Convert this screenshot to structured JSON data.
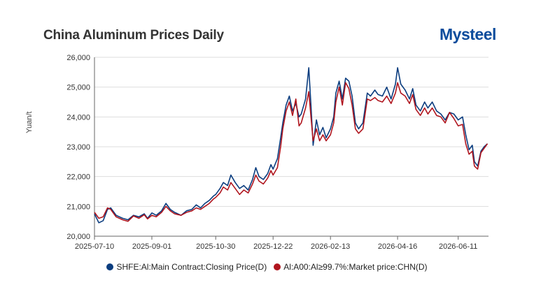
{
  "brand": {
    "logo_text": "Mysteel",
    "logo_color": "#0b4c9c"
  },
  "chart_data": {
    "type": "line",
    "title": "China Aluminum Prices Daily",
    "xlabel": "",
    "ylabel": "Yuan/t",
    "ylim": [
      20000,
      26000
    ],
    "yticks": [
      "20,000",
      "21,000",
      "22,000",
      "23,000",
      "24,000",
      "25,000",
      "26,000"
    ],
    "xticks": [
      "2025-07-10",
      "2025-09-01",
      "2025-10-30",
      "2025-12-22",
      "2026-02-13",
      "2026-04-16",
      "2026-06-11"
    ],
    "grid": "horizontal",
    "legend_position": "bottom",
    "series": [
      {
        "name": "SHFE:Al:Main Contract:Closing Price(D)",
        "color": "#0b3d7f",
        "points": [
          [
            "2025-07-10",
            20750
          ],
          [
            "2025-07-14",
            20450
          ],
          [
            "2025-07-18",
            20520
          ],
          [
            "2025-07-22",
            20900
          ],
          [
            "2025-07-25",
            20950
          ],
          [
            "2025-07-30",
            20700
          ],
          [
            "2025-08-05",
            20600
          ],
          [
            "2025-08-10",
            20550
          ],
          [
            "2025-08-15",
            20700
          ],
          [
            "2025-08-20",
            20650
          ],
          [
            "2025-08-25",
            20750
          ],
          [
            "2025-08-28",
            20600
          ],
          [
            "2025-09-01",
            20780
          ],
          [
            "2025-09-05",
            20700
          ],
          [
            "2025-09-10",
            20850
          ],
          [
            "2025-09-14",
            21100
          ],
          [
            "2025-09-18",
            20900
          ],
          [
            "2025-09-22",
            20800
          ],
          [
            "2025-09-28",
            20700
          ],
          [
            "2025-10-03",
            20850
          ],
          [
            "2025-10-08",
            20900
          ],
          [
            "2025-10-12",
            21050
          ],
          [
            "2025-10-16",
            20950
          ],
          [
            "2025-10-20",
            21100
          ],
          [
            "2025-10-24",
            21200
          ],
          [
            "2025-10-28",
            21350
          ],
          [
            "2025-10-30",
            21400
          ],
          [
            "2025-11-03",
            21600
          ],
          [
            "2025-11-06",
            21800
          ],
          [
            "2025-11-10",
            21700
          ],
          [
            "2025-11-13",
            22050
          ],
          [
            "2025-11-17",
            21800
          ],
          [
            "2025-11-21",
            21600
          ],
          [
            "2025-11-25",
            21700
          ],
          [
            "2025-11-29",
            21550
          ],
          [
            "2025-12-03",
            21900
          ],
          [
            "2025-12-06",
            22300
          ],
          [
            "2025-12-09",
            22000
          ],
          [
            "2025-12-13",
            21900
          ],
          [
            "2025-12-17",
            22100
          ],
          [
            "2025-12-20",
            22400
          ],
          [
            "2025-12-22",
            22250
          ],
          [
            "2025-12-26",
            22600
          ],
          [
            "2025-12-29",
            23300
          ],
          [
            "2025-12-31",
            23800
          ],
          [
            "2026-01-03",
            24400
          ],
          [
            "2026-01-06",
            24700
          ],
          [
            "2026-01-09",
            24200
          ],
          [
            "2026-01-12",
            24450
          ],
          [
            "2026-01-15",
            24000
          ],
          [
            "2026-01-17",
            24100
          ],
          [
            "2026-01-21",
            24600
          ],
          [
            "2026-01-24",
            25650
          ],
          [
            "2026-01-26",
            24400
          ],
          [
            "2026-01-28",
            23050
          ],
          [
            "2026-01-31",
            23900
          ],
          [
            "2026-02-03",
            23400
          ],
          [
            "2026-02-06",
            23650
          ],
          [
            "2026-02-09",
            23300
          ],
          [
            "2026-02-13",
            23600
          ],
          [
            "2026-02-16",
            24000
          ],
          [
            "2026-02-18",
            24800
          ],
          [
            "2026-02-21",
            25200
          ],
          [
            "2026-02-24",
            24600
          ],
          [
            "2026-02-27",
            25300
          ],
          [
            "2026-03-02",
            25200
          ],
          [
            "2026-03-05",
            24700
          ],
          [
            "2026-03-08",
            23800
          ],
          [
            "2026-03-11",
            23600
          ],
          [
            "2026-03-15",
            23800
          ],
          [
            "2026-03-19",
            24800
          ],
          [
            "2026-03-22",
            24700
          ],
          [
            "2026-03-26",
            24900
          ],
          [
            "2026-03-29",
            24750
          ],
          [
            "2026-04-02",
            24700
          ],
          [
            "2026-04-06",
            25000
          ],
          [
            "2026-04-10",
            24600
          ],
          [
            "2026-04-14",
            25100
          ],
          [
            "2026-04-16",
            25650
          ],
          [
            "2026-04-19",
            25100
          ],
          [
            "2026-04-23",
            24900
          ],
          [
            "2026-04-27",
            24600
          ],
          [
            "2026-04-30",
            24950
          ],
          [
            "2026-05-03",
            24400
          ],
          [
            "2026-05-07",
            24200
          ],
          [
            "2026-05-11",
            24500
          ],
          [
            "2026-05-14",
            24300
          ],
          [
            "2026-05-18",
            24500
          ],
          [
            "2026-05-22",
            24200
          ],
          [
            "2026-05-26",
            24100
          ],
          [
            "2026-05-30",
            23900
          ],
          [
            "2026-06-03",
            24150
          ],
          [
            "2026-06-07",
            24100
          ],
          [
            "2026-06-11",
            23900
          ],
          [
            "2026-06-15",
            24000
          ],
          [
            "2026-06-18",
            23400
          ],
          [
            "2026-06-21",
            22900
          ],
          [
            "2026-06-24",
            23050
          ],
          [
            "2026-06-26",
            22500
          ],
          [
            "2026-06-29",
            22350
          ],
          [
            "2026-07-02",
            22850
          ],
          [
            "2026-07-05",
            23000
          ],
          [
            "2026-07-08",
            23100
          ]
        ]
      },
      {
        "name": "Al:A00:Al≥99.7%:Market price:CHN(D)",
        "color": "#b0151e",
        "points": [
          [
            "2025-07-10",
            20800
          ],
          [
            "2025-07-14",
            20600
          ],
          [
            "2025-07-18",
            20650
          ],
          [
            "2025-07-22",
            20950
          ],
          [
            "2025-07-25",
            20900
          ],
          [
            "2025-07-30",
            20650
          ],
          [
            "2025-08-05",
            20550
          ],
          [
            "2025-08-10",
            20500
          ],
          [
            "2025-08-15",
            20680
          ],
          [
            "2025-08-20",
            20600
          ],
          [
            "2025-08-25",
            20720
          ],
          [
            "2025-08-28",
            20580
          ],
          [
            "2025-09-01",
            20700
          ],
          [
            "2025-09-05",
            20650
          ],
          [
            "2025-09-10",
            20800
          ],
          [
            "2025-09-14",
            21000
          ],
          [
            "2025-09-18",
            20850
          ],
          [
            "2025-09-22",
            20750
          ],
          [
            "2025-09-28",
            20700
          ],
          [
            "2025-10-03",
            20800
          ],
          [
            "2025-10-08",
            20850
          ],
          [
            "2025-10-12",
            20950
          ],
          [
            "2025-10-16",
            20900
          ],
          [
            "2025-10-20",
            21000
          ],
          [
            "2025-10-24",
            21100
          ],
          [
            "2025-10-28",
            21250
          ],
          [
            "2025-10-30",
            21300
          ],
          [
            "2025-11-03",
            21450
          ],
          [
            "2025-11-06",
            21650
          ],
          [
            "2025-11-10",
            21550
          ],
          [
            "2025-11-13",
            21800
          ],
          [
            "2025-11-17",
            21600
          ],
          [
            "2025-11-21",
            21400
          ],
          [
            "2025-11-25",
            21550
          ],
          [
            "2025-11-29",
            21450
          ],
          [
            "2025-12-03",
            21750
          ],
          [
            "2025-12-06",
            22050
          ],
          [
            "2025-12-09",
            21850
          ],
          [
            "2025-12-13",
            21750
          ],
          [
            "2025-12-17",
            21950
          ],
          [
            "2025-12-20",
            22200
          ],
          [
            "2025-12-22",
            22050
          ],
          [
            "2025-12-26",
            22300
          ],
          [
            "2025-12-29",
            23000
          ],
          [
            "2025-12-31",
            23600
          ],
          [
            "2026-01-03",
            24200
          ],
          [
            "2026-01-06",
            24500
          ],
          [
            "2026-01-09",
            24050
          ],
          [
            "2026-01-12",
            24600
          ],
          [
            "2026-01-15",
            23700
          ],
          [
            "2026-01-17",
            23800
          ],
          [
            "2026-01-21",
            24300
          ],
          [
            "2026-01-24",
            24850
          ],
          [
            "2026-01-26",
            24000
          ],
          [
            "2026-01-28",
            23200
          ],
          [
            "2026-01-31",
            23600
          ],
          [
            "2026-02-03",
            23200
          ],
          [
            "2026-02-06",
            23400
          ],
          [
            "2026-02-09",
            23200
          ],
          [
            "2026-02-13",
            23400
          ],
          [
            "2026-02-16",
            23800
          ],
          [
            "2026-02-18",
            24500
          ],
          [
            "2026-02-21",
            25000
          ],
          [
            "2026-02-24",
            24400
          ],
          [
            "2026-02-27",
            25150
          ],
          [
            "2026-03-02",
            24950
          ],
          [
            "2026-03-05",
            24400
          ],
          [
            "2026-03-08",
            23600
          ],
          [
            "2026-03-11",
            23450
          ],
          [
            "2026-03-15",
            23600
          ],
          [
            "2026-03-19",
            24600
          ],
          [
            "2026-03-22",
            24550
          ],
          [
            "2026-03-26",
            24650
          ],
          [
            "2026-03-29",
            24550
          ],
          [
            "2026-04-02",
            24500
          ],
          [
            "2026-04-06",
            24700
          ],
          [
            "2026-04-10",
            24450
          ],
          [
            "2026-04-14",
            24800
          ],
          [
            "2026-04-16",
            25150
          ],
          [
            "2026-04-19",
            24800
          ],
          [
            "2026-04-23",
            24700
          ],
          [
            "2026-04-27",
            24450
          ],
          [
            "2026-04-30",
            24750
          ],
          [
            "2026-05-03",
            24250
          ],
          [
            "2026-05-07",
            24050
          ],
          [
            "2026-05-11",
            24300
          ],
          [
            "2026-05-14",
            24100
          ],
          [
            "2026-05-18",
            24300
          ],
          [
            "2026-05-22",
            24050
          ],
          [
            "2026-05-26",
            24000
          ],
          [
            "2026-05-30",
            23800
          ],
          [
            "2026-06-03",
            24150
          ],
          [
            "2026-06-07",
            23950
          ],
          [
            "2026-06-11",
            23700
          ],
          [
            "2026-06-15",
            23750
          ],
          [
            "2026-06-18",
            23100
          ],
          [
            "2026-06-21",
            22750
          ],
          [
            "2026-06-24",
            22850
          ],
          [
            "2026-06-26",
            22350
          ],
          [
            "2026-06-29",
            22250
          ],
          [
            "2026-07-02",
            22800
          ],
          [
            "2026-07-05",
            22950
          ],
          [
            "2026-07-08",
            23100
          ]
        ]
      }
    ]
  }
}
